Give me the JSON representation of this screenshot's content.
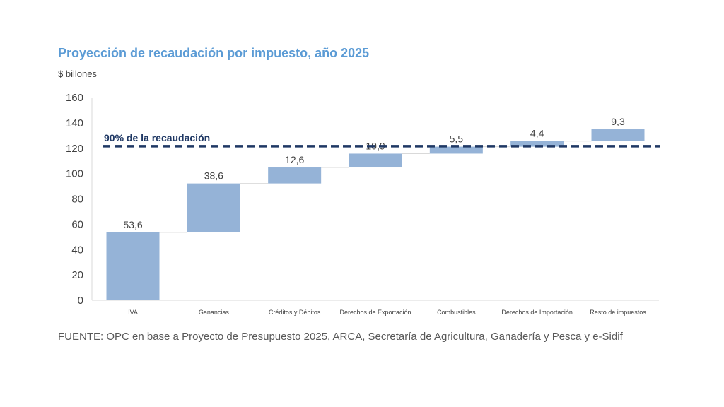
{
  "chart_data": {
    "type": "bar",
    "subtype": "waterfall",
    "title": "Proyección de recaudación por impuesto, año 2025",
    "ylabel": "$ billones",
    "ylim": [
      0,
      160
    ],
    "yticks": [
      "0",
      "20",
      "40",
      "60",
      "80",
      "100",
      "120",
      "140",
      "160"
    ],
    "categories": [
      "IVA",
      "Ganancias",
      "Créditos y Débitos",
      "Derechos de Exportación",
      "Combustibles",
      "Derechos de Importación",
      "Resto de impuestos"
    ],
    "values": [
      53.6,
      38.6,
      12.6,
      10.9,
      5.5,
      4.4,
      9.3
    ],
    "value_labels": [
      "53,6",
      "38,6",
      "12,6",
      "10,9",
      "5,5",
      "4,4",
      "9,3"
    ],
    "reference_line": {
      "label": "90% de la recaudación",
      "value": 121.6
    },
    "bar_color": "#95b3d7",
    "reference_color": "#1f3864",
    "grid": false
  },
  "source_note": "FUENTE: OPC en base a Proyecto de Presupuesto 2025, ARCA, Secretaría de Agricultura, Ganadería y Pesca y e-Sidif"
}
